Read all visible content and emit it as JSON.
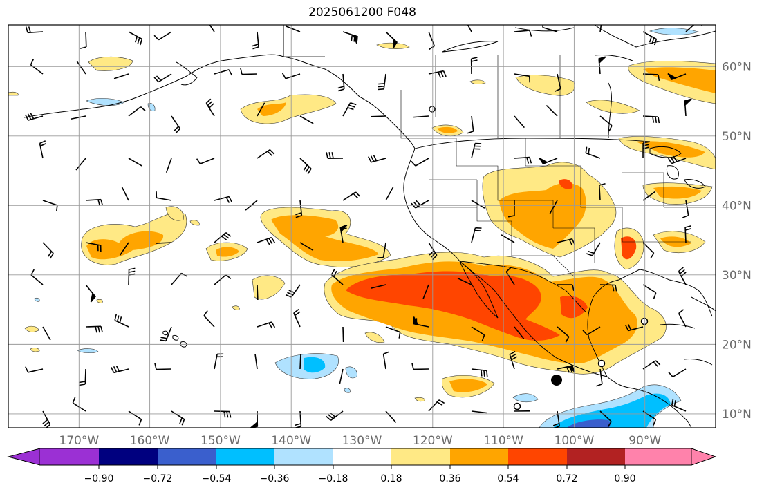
{
  "title": "2025061200 F048",
  "map": {
    "longitude_labels": [
      "170°W",
      "160°W",
      "150°W",
      "140°W",
      "130°W",
      "120°W",
      "110°W",
      "100°W",
      "90°W"
    ],
    "latitude_labels": [
      "60°N",
      "50°N",
      "40°N",
      "30°N",
      "20°N",
      "10°N"
    ],
    "lon_range": [
      -180,
      -80
    ],
    "lat_range": [
      8,
      66
    ],
    "gridlines": true
  },
  "colorbar": {
    "tick_labels": [
      "−0.90",
      "−0.72",
      "−0.54",
      "−0.36",
      "−0.18",
      "0.18",
      "0.36",
      "0.54",
      "0.72",
      "0.90"
    ],
    "colors": {
      "under": "#9b30d4",
      "neg_090": "#00007f",
      "neg_072": "#3a5fcd",
      "neg_054": "#00bfff",
      "neg_036": "#b0e2ff",
      "neutral": "#ffffff",
      "pos_018": "#ffe985",
      "pos_036": "#ffa500",
      "pos_054": "#ff4500",
      "pos_072": "#b22222",
      "over": "#ff82ab"
    }
  }
}
